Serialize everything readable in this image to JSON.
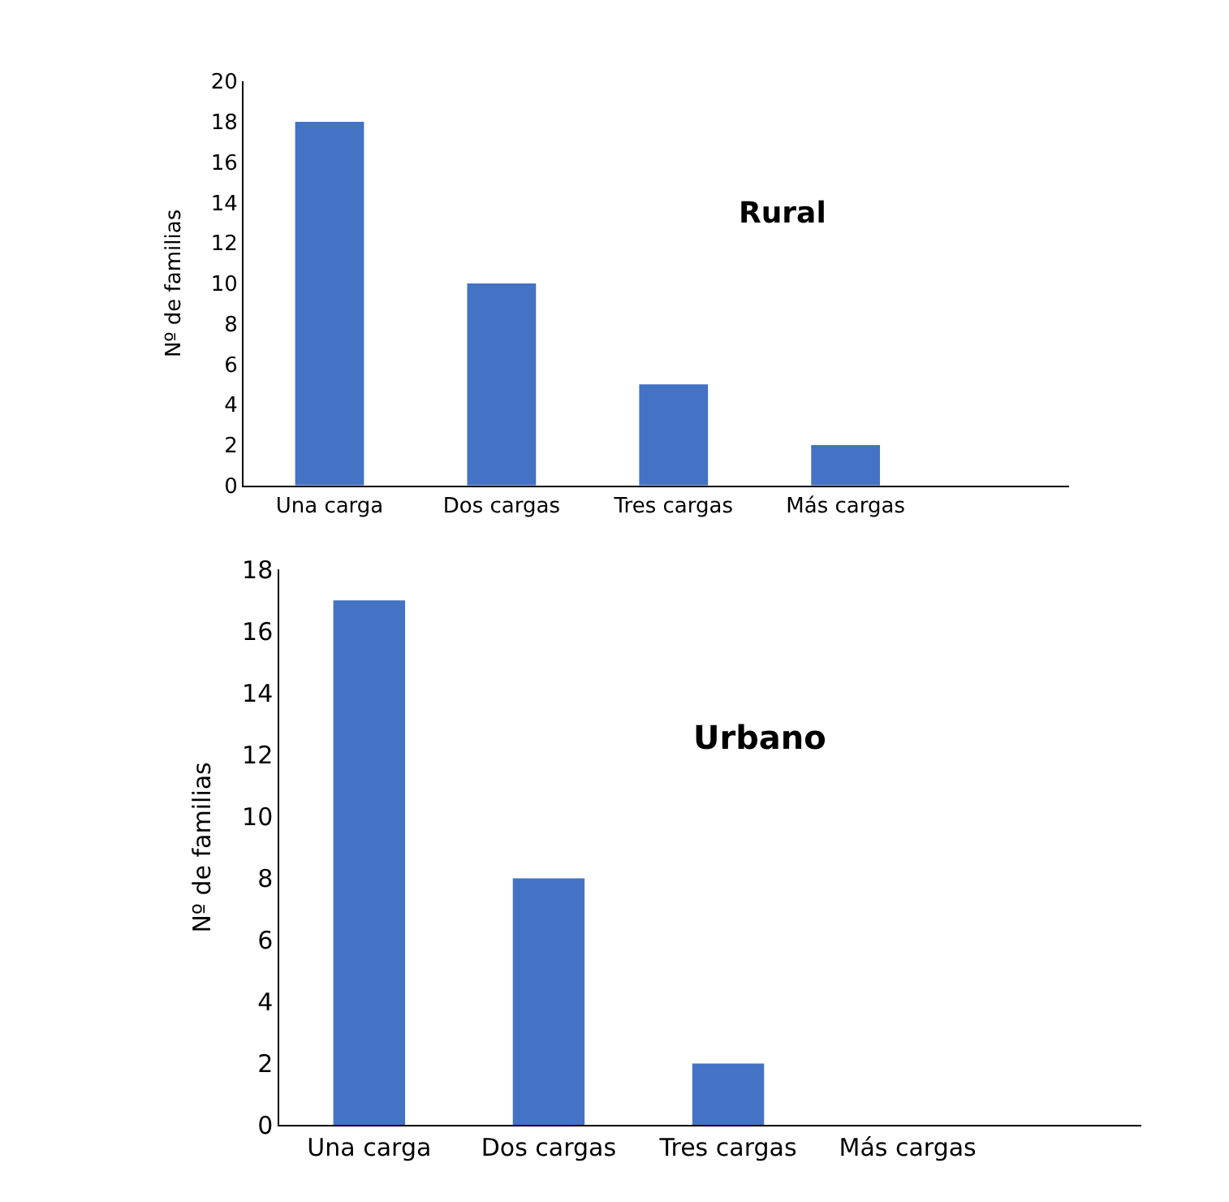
{
  "chart_data": [
    {
      "type": "bar",
      "title": "Rural",
      "ylabel": "Nº de familias",
      "categories": [
        "Una carga",
        "Dos cargas",
        "Tres cargas",
        "Más cargas"
      ],
      "values": [
        18,
        10,
        5,
        2
      ],
      "color": "#4472c4",
      "ylim": [
        0,
        20
      ],
      "yticks": [
        0,
        2,
        4,
        6,
        8,
        10,
        12,
        14,
        16,
        18,
        20
      ]
    },
    {
      "type": "bar",
      "title": "Urbano",
      "ylabel": "Nº de familias",
      "categories": [
        "Una carga",
        "Dos cargas",
        "Tres cargas",
        "Más cargas"
      ],
      "values": [
        17,
        8,
        2,
        0
      ],
      "color": "#4472c4",
      "ylim": [
        0,
        18
      ],
      "yticks": [
        0,
        2,
        4,
        6,
        8,
        10,
        12,
        14,
        16,
        18
      ]
    }
  ]
}
